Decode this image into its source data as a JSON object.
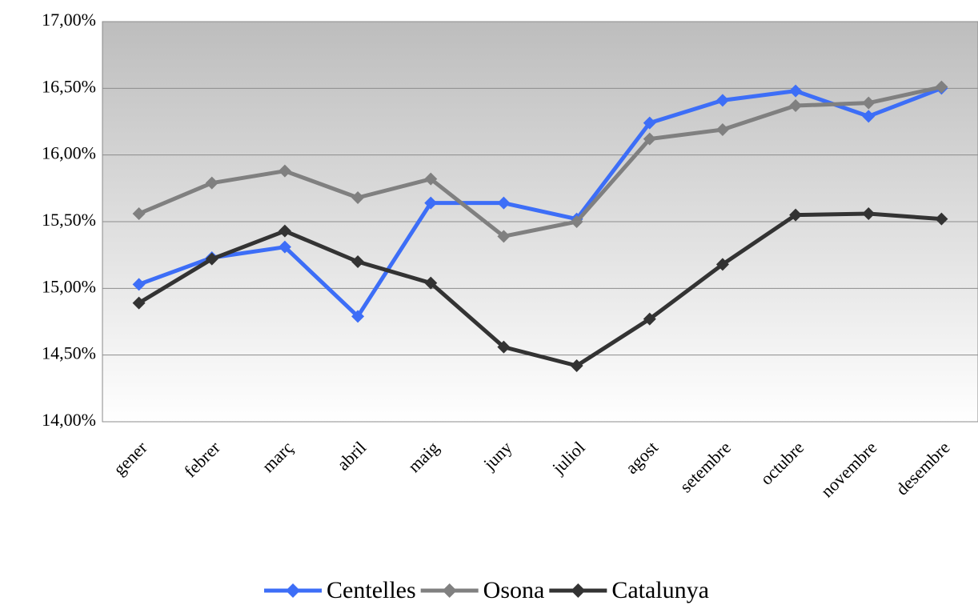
{
  "chart_data": {
    "type": "line",
    "categories": [
      "gener",
      "febrer",
      "març",
      "abril",
      "maig",
      "juny",
      "juliol",
      "agost",
      "setembre",
      "octubre",
      "novembre",
      "desembre"
    ],
    "series": [
      {
        "name": "Centelles",
        "color": "#3d6ef7",
        "values": [
          15.03,
          15.23,
          15.31,
          14.79,
          15.64,
          15.64,
          15.52,
          16.24,
          16.41,
          16.48,
          16.29,
          16.5
        ]
      },
      {
        "name": "Osona",
        "color": "#808080",
        "values": [
          15.56,
          15.79,
          15.88,
          15.68,
          15.82,
          15.39,
          15.5,
          16.12,
          16.19,
          16.37,
          16.39,
          16.51
        ]
      },
      {
        "name": "Catalunya",
        "color": "#333333",
        "values": [
          14.89,
          15.22,
          15.43,
          15.2,
          15.04,
          14.56,
          14.42,
          14.77,
          15.18,
          15.55,
          15.56,
          15.52
        ]
      }
    ],
    "ylim": [
      14,
      17
    ],
    "yticks": [
      {
        "value": 14,
        "label": "14,00%"
      },
      {
        "value": 14.5,
        "label": "14,50%"
      },
      {
        "value": 15,
        "label": "15,00%"
      },
      {
        "value": 15.5,
        "label": "15,50%"
      },
      {
        "value": 16,
        "label": "16,00%"
      },
      {
        "value": 16.5,
        "label": "16,50%"
      },
      {
        "value": 17,
        "label": "17,00%"
      }
    ],
    "grid": true,
    "legend": "bottom"
  }
}
